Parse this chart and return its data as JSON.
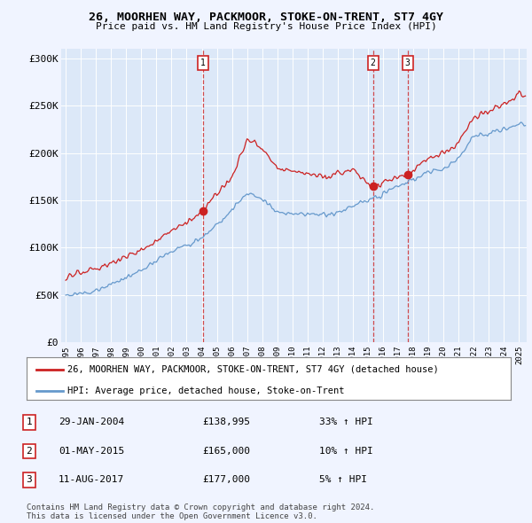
{
  "title": "26, MOORHEN WAY, PACKMOOR, STOKE-ON-TRENT, ST7 4GY",
  "subtitle": "Price paid vs. HM Land Registry's House Price Index (HPI)",
  "background_color": "#f0f4ff",
  "plot_bg_color": "#dce8f8",
  "legend_label_red": "26, MOORHEN WAY, PACKMOOR, STOKE-ON-TRENT, ST7 4GY (detached house)",
  "legend_label_blue": "HPI: Average price, detached house, Stoke-on-Trent",
  "transactions": [
    {
      "num": 1,
      "date": "29-JAN-2004",
      "price": "£138,995",
      "pct": "33% ↑ HPI",
      "year": 2004.08,
      "price_val": 138995
    },
    {
      "num": 2,
      "date": "01-MAY-2015",
      "price": "£165,000",
      "pct": "10% ↑ HPI",
      "year": 2015.33,
      "price_val": 165000
    },
    {
      "num": 3,
      "date": "11-AUG-2017",
      "price": "£177,000",
      "pct": "5% ↑ HPI",
      "year": 2017.62,
      "price_val": 177000
    }
  ],
  "footnote": "Contains HM Land Registry data © Crown copyright and database right 2024.\nThis data is licensed under the Open Government Licence v3.0.",
  "ylim": [
    0,
    310000
  ],
  "yticks": [
    0,
    50000,
    100000,
    150000,
    200000,
    250000,
    300000
  ],
  "ytick_labels": [
    "£0",
    "£50K",
    "£100K",
    "£150K",
    "£200K",
    "£250K",
    "£300K"
  ],
  "xlim_start": 1994.7,
  "xlim_end": 2025.5,
  "red_color": "#cc2222",
  "blue_color": "#6699cc",
  "grid_color": "#ffffff"
}
